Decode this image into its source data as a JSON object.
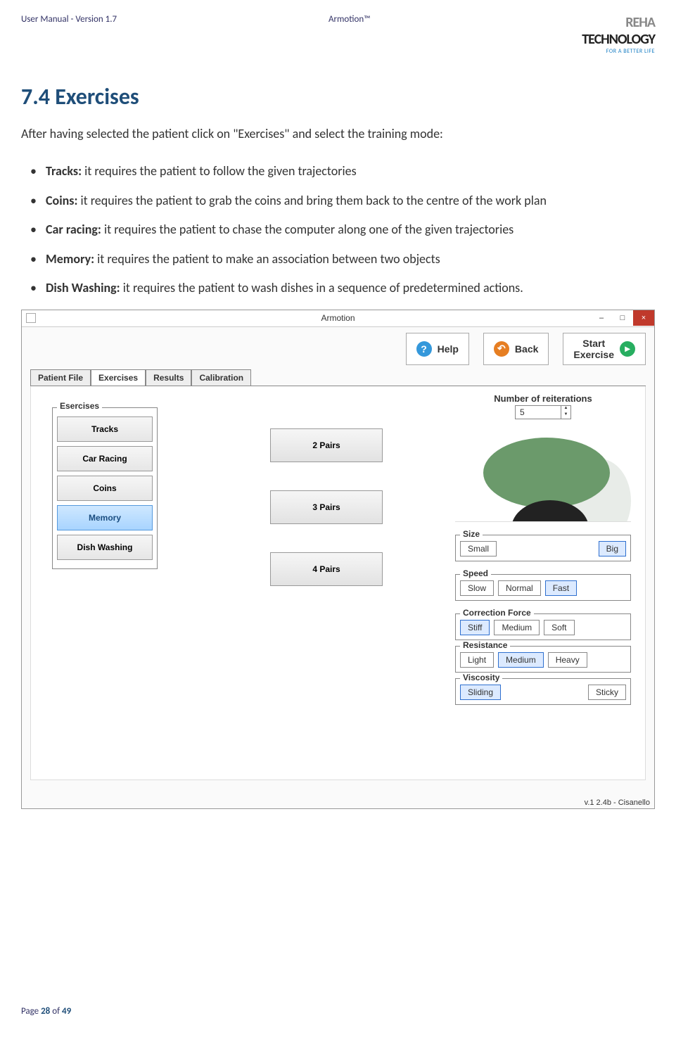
{
  "header": {
    "left": "User Manual - Version 1.7",
    "center": "Armotion™",
    "logo_line1a": "REHA",
    "logo_line1b": "TECHNOLOGY",
    "logo_line2": "FOR A BETTER LIFE"
  },
  "section": {
    "heading": "7.4 Exercises",
    "intro": "After having selected the patient click on \"Exercises\" and select the training mode:"
  },
  "bullets": [
    {
      "label": "Tracks:",
      "text": " it requires the patient to follow the given trajectories"
    },
    {
      "label": "Coins:",
      "text": " it requires the patient to grab the coins and bring them back to the centre of the work plan"
    },
    {
      "label": "Car racing:",
      "text": " it requires the patient to chase the computer along one of the given trajectories"
    },
    {
      "label": "Memory:",
      "text": " it requires the patient to make an association between two objects"
    },
    {
      "label": "Dish Washing:",
      "text": " it requires the patient to wash dishes in a sequence of predetermined actions."
    }
  ],
  "app": {
    "window_title": "Armotion",
    "top_buttons": {
      "help": "Help",
      "back": "Back",
      "start": "Start\nExercise"
    },
    "tabs": [
      "Patient File",
      "Exercises",
      "Results",
      "Calibration"
    ],
    "active_tab": "Exercises",
    "exercises_label": "Esercises",
    "exercises": [
      "Tracks",
      "Car Racing",
      "Coins",
      "Memory",
      "Dish Washing"
    ],
    "selected_exercise": "Memory",
    "pair_options": [
      "2 Pairs",
      "3 Pairs",
      "4 Pairs"
    ],
    "reiterations": {
      "label": "Number of reiterations",
      "value": "5"
    },
    "settings": {
      "size": {
        "label": "Size",
        "options": [
          "Small",
          "Big"
        ],
        "selected": "Big"
      },
      "speed": {
        "label": "Speed",
        "options": [
          "Slow",
          "Normal",
          "Fast"
        ],
        "selected": "Fast"
      },
      "correction": {
        "label": "Correction Force",
        "options": [
          "Stiff",
          "Medium",
          "Soft"
        ],
        "selected": "Stiff"
      },
      "resistance": {
        "label": "Resistance",
        "options": [
          "Light",
          "Medium",
          "Heavy"
        ],
        "selected": "Medium"
      },
      "viscosity": {
        "label": "Viscosity",
        "options": [
          "Sliding",
          "Sticky"
        ],
        "selected": "Sliding"
      }
    },
    "version": "v.1 2.4b - Cisanello"
  },
  "footer": {
    "prefix": "Page ",
    "current": "28",
    "mid": " of ",
    "total": "49"
  },
  "colors": {
    "heading": "#1f4e79",
    "ellipse": "#6b9a6b",
    "close": "#c0392b"
  }
}
